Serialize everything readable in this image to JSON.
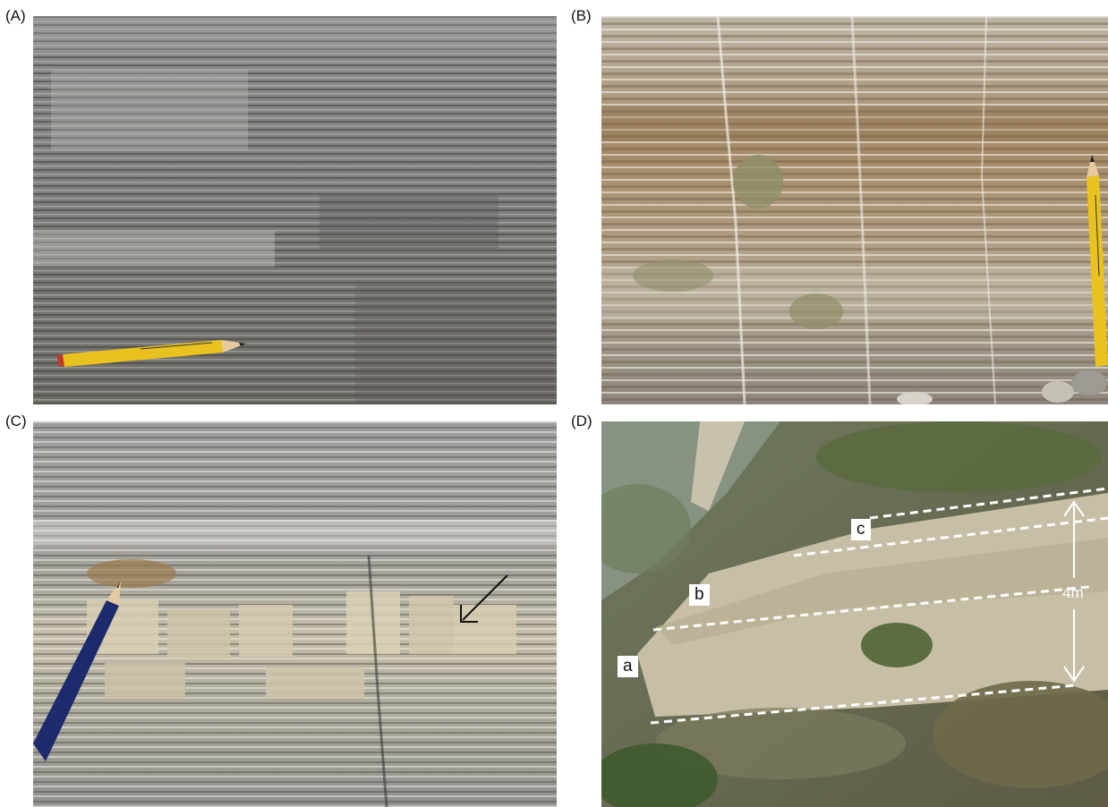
{
  "figure": {
    "panels": [
      {
        "label": "(A)",
        "subject": "laminated-limestone-with-yellow-pencil"
      },
      {
        "label": "(B)",
        "subject": "banded-outcrop-with-yellow-pencil"
      },
      {
        "label": "(C)",
        "subject": "laminated-outcrop-with-blue-pencil-and-arrow"
      },
      {
        "label": "(D)",
        "subject": "hillside-outcrop-with-unit-boundaries"
      }
    ],
    "outcrop_units": [
      "a",
      "b",
      "c"
    ],
    "scale_label": "4m",
    "colors": {
      "pencil_yellow": "#e9c21f",
      "pencil_blue": "#1d2a6b",
      "boundary_line": "#ffffff",
      "arrow": "#111111"
    }
  }
}
